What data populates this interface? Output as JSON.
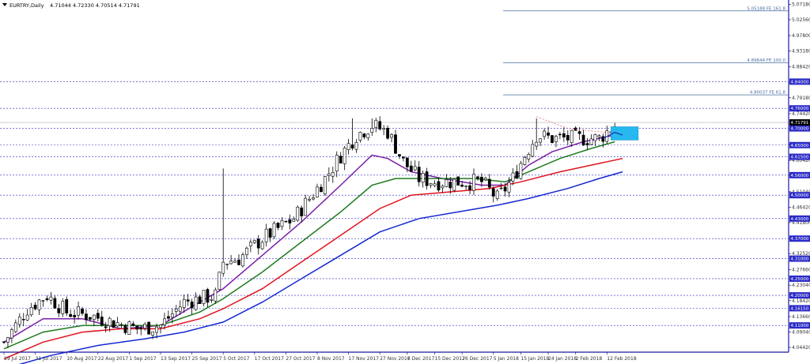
{
  "chart_data": {
    "type": "candlestick",
    "symbol_timeframe": "EURTRY,Daily",
    "ohlc_header": "4.71044 4.72330 4.70514 4.71791",
    "ylim": [
      4.03,
      5.075
    ],
    "price_ticks": [
      "5.07180",
      "5.02560",
      "4.97800",
      "4.93180",
      "4.88420",
      "4.83800",
      "4.79180",
      "4.74420",
      "4.69800",
      "4.65040",
      "4.60420",
      "4.55800",
      "4.51040",
      "4.46420",
      "4.41800",
      "4.37040",
      "4.32520",
      "4.27660",
      "4.23040",
      "4.18420",
      "4.13660",
      "4.09040",
      "4.04420"
    ],
    "date_ticks": [
      {
        "label": "19 Jul 2017",
        "i": 0
      },
      {
        "label": "31 Jul 2017",
        "i": 8
      },
      {
        "label": "10 Aug 2017",
        "i": 16
      },
      {
        "label": "22 Aug 2017",
        "i": 24
      },
      {
        "label": "1 Sep 2017",
        "i": 32
      },
      {
        "label": "13 Sep 2017",
        "i": 40
      },
      {
        "label": "25 Sep 2017",
        "i": 48
      },
      {
        "label": "5 Oct 2017",
        "i": 56
      },
      {
        "label": "17 Oct 2017",
        "i": 64
      },
      {
        "label": "27 Oct 2017",
        "i": 72
      },
      {
        "label": "8 Nov 2017",
        "i": 80
      },
      {
        "label": "17 Nov 2017",
        "i": 88
      },
      {
        "label": "27 Nov 2017",
        "i": 96
      },
      {
        "label": "6 Dec 2017",
        "i": 103
      },
      {
        "label": "15 Dec 2017",
        "i": 110
      },
      {
        "label": "26 Dec 2017",
        "i": 117
      },
      {
        "label": "5 Jan 2018",
        "i": 125
      },
      {
        "label": "15 Jan 2018",
        "i": 132
      },
      {
        "label": "24 Jan 2018",
        "i": 139
      },
      {
        "label": "2 Feb 2018",
        "i": 146
      },
      {
        "label": "12 Feb 2018",
        "i": 154
      }
    ],
    "horizontal_levels": [
      {
        "price": 4.76,
        "label": "4.76000"
      },
      {
        "price": 4.7,
        "label": "4.70000"
      },
      {
        "price": 4.65,
        "label": "4.65000"
      },
      {
        "price": 4.615,
        "label": "4.61500"
      },
      {
        "price": 4.56,
        "label": "4.56000"
      },
      {
        "price": 4.5,
        "label": "4.50000"
      },
      {
        "price": 4.43,
        "label": "4.43000"
      },
      {
        "price": 4.37,
        "label": "4.37000"
      },
      {
        "price": 4.31,
        "label": "4.31000"
      },
      {
        "price": 4.25,
        "label": "4.25000"
      },
      {
        "price": 4.2,
        "label": "4.20000"
      },
      {
        "price": 4.1615,
        "label": "4.16150"
      },
      {
        "price": 4.11,
        "label": "4.11000"
      },
      {
        "price": 4.84,
        "label": "4.84000"
      }
    ],
    "current_price": {
      "price": 4.7179,
      "label": "4.71791"
    },
    "fib_levels": [
      {
        "price": 5.05188,
        "label": "5.05188 FE 161.8"
      },
      {
        "price": 4.89644,
        "label": "4.89644 FE 100.0"
      },
      {
        "price": 4.80037,
        "label": "4.80037 FE 61.8"
      }
    ],
    "anchors": [
      [
        0,
        4.06,
        "#14a018"
      ],
      [
        6,
        4.16,
        "#14a018"
      ],
      [
        11,
        4.2,
        "#14a018"
      ],
      [
        16,
        4.15,
        "#ffffff"
      ],
      [
        22,
        4.14,
        "#ffffff"
      ],
      [
        28,
        4.12,
        "#ffffff"
      ],
      [
        34,
        4.1,
        "#ffffff"
      ],
      [
        40,
        4.11,
        "#14a018"
      ],
      [
        46,
        4.18,
        "#14a018"
      ],
      [
        50,
        4.19,
        "#14a018"
      ],
      [
        54,
        4.2,
        "#14a018"
      ],
      [
        56,
        4.3,
        "#14a018"
      ],
      [
        60,
        4.31,
        "#14a018"
      ],
      [
        66,
        4.37,
        "#14a018"
      ],
      [
        70,
        4.4,
        "#14a018"
      ],
      [
        74,
        4.43,
        "#14a018"
      ],
      [
        78,
        4.49,
        "#14a018"
      ],
      [
        82,
        4.55,
        "#14a018"
      ],
      [
        86,
        4.62,
        "#14a018"
      ],
      [
        90,
        4.68,
        "#14a018"
      ],
      [
        94,
        4.71,
        "#14a018"
      ],
      [
        98,
        4.69,
        "#ffffff"
      ],
      [
        102,
        4.6,
        "#ffffff"
      ],
      [
        106,
        4.55,
        "#ffffff"
      ],
      [
        110,
        4.54,
        "#ffffff"
      ],
      [
        116,
        4.54,
        "#14a018"
      ],
      [
        122,
        4.54,
        "#ffffff"
      ],
      [
        126,
        4.49,
        "#ffffff"
      ],
      [
        130,
        4.55,
        "#14a018"
      ],
      [
        133,
        4.62,
        "#14a018"
      ],
      [
        136,
        4.68,
        "#14a018"
      ],
      [
        140,
        4.67,
        "#ffffff"
      ],
      [
        144,
        4.67,
        "#14a018"
      ],
      [
        148,
        4.67,
        "#14a018"
      ],
      [
        152,
        4.67,
        "#ffffff"
      ],
      [
        156,
        4.71,
        "#14a018"
      ]
    ],
    "spikes": [
      {
        "i": 56,
        "high": 4.58
      },
      {
        "i": 89,
        "high": 4.73
      },
      {
        "i": 94,
        "high": 4.73
      },
      {
        "i": 136,
        "high": 4.73
      }
    ],
    "moving_averages": [
      {
        "color": "#7a1fa8",
        "points": [
          [
            0,
            4.06
          ],
          [
            10,
            4.13
          ],
          [
            20,
            4.13
          ],
          [
            30,
            4.1
          ],
          [
            40,
            4.11
          ],
          [
            50,
            4.18
          ],
          [
            56,
            4.22
          ],
          [
            66,
            4.32
          ],
          [
            76,
            4.42
          ],
          [
            86,
            4.53
          ],
          [
            94,
            4.62
          ],
          [
            98,
            4.61
          ],
          [
            104,
            4.57
          ],
          [
            112,
            4.55
          ],
          [
            122,
            4.53
          ],
          [
            128,
            4.53
          ],
          [
            134,
            4.59
          ],
          [
            140,
            4.63
          ],
          [
            148,
            4.66
          ],
          [
            156,
            4.68
          ]
        ]
      },
      {
        "color": "#1e7b1e",
        "points": [
          [
            0,
            4.04
          ],
          [
            10,
            4.09
          ],
          [
            20,
            4.11
          ],
          [
            30,
            4.11
          ],
          [
            40,
            4.11
          ],
          [
            50,
            4.15
          ],
          [
            56,
            4.19
          ],
          [
            66,
            4.27
          ],
          [
            76,
            4.36
          ],
          [
            86,
            4.45
          ],
          [
            94,
            4.53
          ],
          [
            100,
            4.55
          ],
          [
            110,
            4.55
          ],
          [
            120,
            4.55
          ],
          [
            128,
            4.54
          ],
          [
            134,
            4.57
          ],
          [
            142,
            4.61
          ],
          [
            150,
            4.64
          ],
          [
            156,
            4.66
          ]
        ]
      },
      {
        "color": "#e0141e",
        "points": [
          [
            0,
            4.01
          ],
          [
            10,
            4.06
          ],
          [
            20,
            4.09
          ],
          [
            30,
            4.1
          ],
          [
            40,
            4.1
          ],
          [
            50,
            4.13
          ],
          [
            56,
            4.16
          ],
          [
            66,
            4.22
          ],
          [
            76,
            4.3
          ],
          [
            86,
            4.38
          ],
          [
            96,
            4.46
          ],
          [
            104,
            4.5
          ],
          [
            114,
            4.51
          ],
          [
            124,
            4.52
          ],
          [
            132,
            4.54
          ],
          [
            142,
            4.57
          ],
          [
            150,
            4.59
          ],
          [
            158,
            4.61
          ]
        ]
      },
      {
        "color": "#1428d2",
        "points": [
          [
            0,
            3.98
          ],
          [
            12,
            4.02
          ],
          [
            24,
            4.05
          ],
          [
            36,
            4.07
          ],
          [
            46,
            4.09
          ],
          [
            56,
            4.12
          ],
          [
            66,
            4.18
          ],
          [
            76,
            4.25
          ],
          [
            86,
            4.32
          ],
          [
            96,
            4.39
          ],
          [
            106,
            4.43
          ],
          [
            116,
            4.45
          ],
          [
            126,
            4.47
          ],
          [
            134,
            4.49
          ],
          [
            144,
            4.52
          ],
          [
            152,
            4.55
          ],
          [
            158,
            4.57
          ]
        ]
      }
    ]
  }
}
